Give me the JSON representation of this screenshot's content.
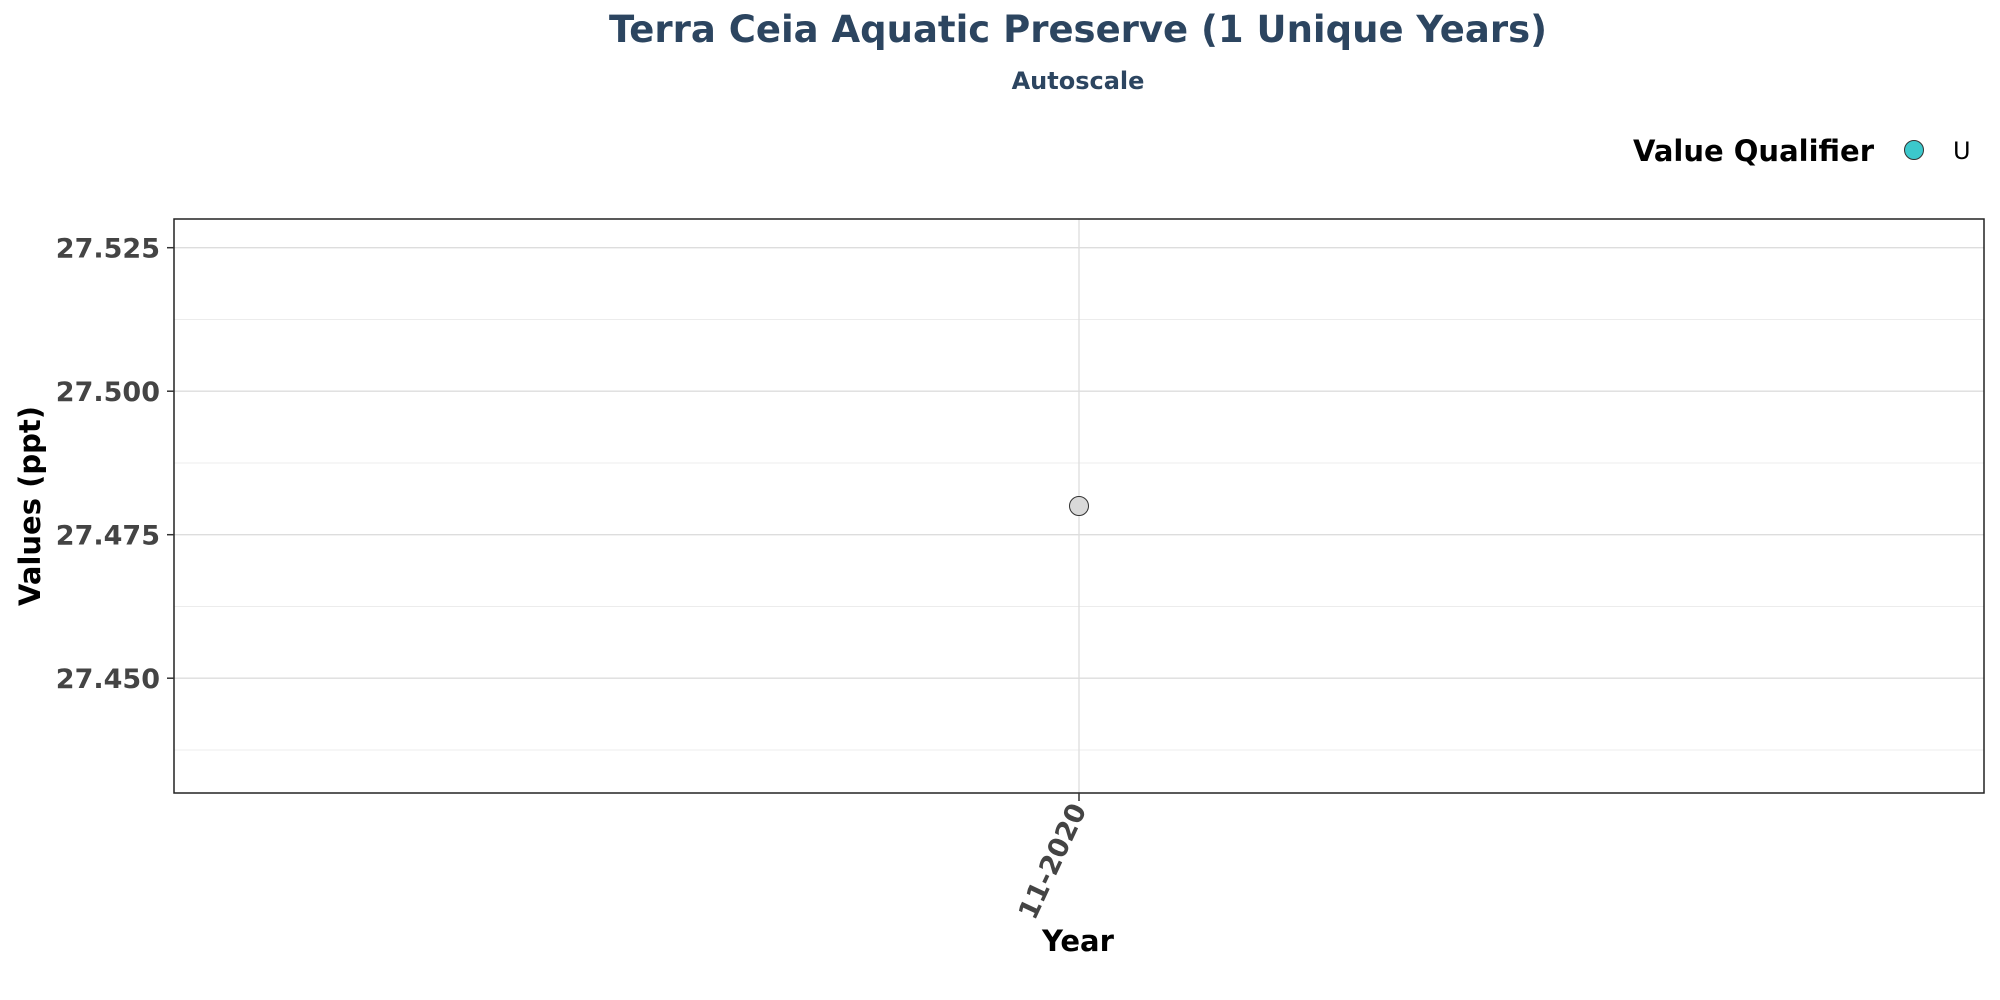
{
  "chart_data": {
    "type": "scatter",
    "title": "Terra Ceia Aquatic Preserve (1 Unique Years)",
    "subtitle": "Autoscale",
    "xlabel": "Year",
    "ylabel": "Values (ppt)",
    "x_categories": [
      "11-2020"
    ],
    "points": [
      {
        "x": "11-2020",
        "y": 27.48,
        "color": "#d9d9d9"
      }
    ],
    "ylim": [
      27.43,
      27.53
    ],
    "y_ticks": [
      27.45,
      27.475,
      27.5,
      27.525
    ],
    "y_tick_labels": [
      "27.450",
      "27.475",
      "27.500",
      "27.525"
    ],
    "grid": true,
    "legend": {
      "title": "Value Qualifier",
      "position": "top-right",
      "items": [
        {
          "label": "U",
          "color": "#3cc8cc"
        }
      ]
    }
  }
}
